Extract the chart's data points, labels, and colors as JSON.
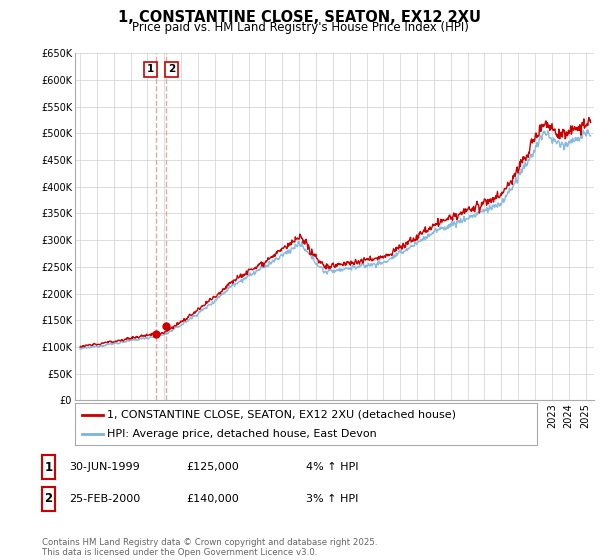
{
  "title": "1, CONSTANTINE CLOSE, SEATON, EX12 2XU",
  "subtitle": "Price paid vs. HM Land Registry's House Price Index (HPI)",
  "ylabel_ticks": [
    "£0",
    "£50K",
    "£100K",
    "£150K",
    "£200K",
    "£250K",
    "£300K",
    "£350K",
    "£400K",
    "£450K",
    "£500K",
    "£550K",
    "£600K",
    "£650K"
  ],
  "ylim": [
    0,
    650000
  ],
  "xlim_start": 1994.7,
  "xlim_end": 2025.5,
  "hpi_color": "#7ab4e0",
  "price_color": "#cc0000",
  "marker_color": "#cc0000",
  "vline_color": "#ddaaaa",
  "sale1_x": 1999.49,
  "sale1_y": 125000,
  "sale2_x": 2000.12,
  "sale2_y": 140000,
  "legend_line1": "1, CONSTANTINE CLOSE, SEATON, EX12 2XU (detached house)",
  "legend_line2": "HPI: Average price, detached house, East Devon",
  "table_rows": [
    {
      "num": "1",
      "date": "30-JUN-1999",
      "price": "£125,000",
      "change": "4% ↑ HPI"
    },
    {
      "num": "2",
      "date": "25-FEB-2000",
      "price": "£140,000",
      "change": "3% ↑ HPI"
    }
  ],
  "footnote": "Contains HM Land Registry data © Crown copyright and database right 2025.\nThis data is licensed under the Open Government Licence v3.0.",
  "bg_color": "#ffffff",
  "grid_color": "#d0d0d0",
  "title_fontsize": 10.5,
  "subtitle_fontsize": 8.5,
  "tick_fontsize": 7,
  "legend_fontsize": 8
}
